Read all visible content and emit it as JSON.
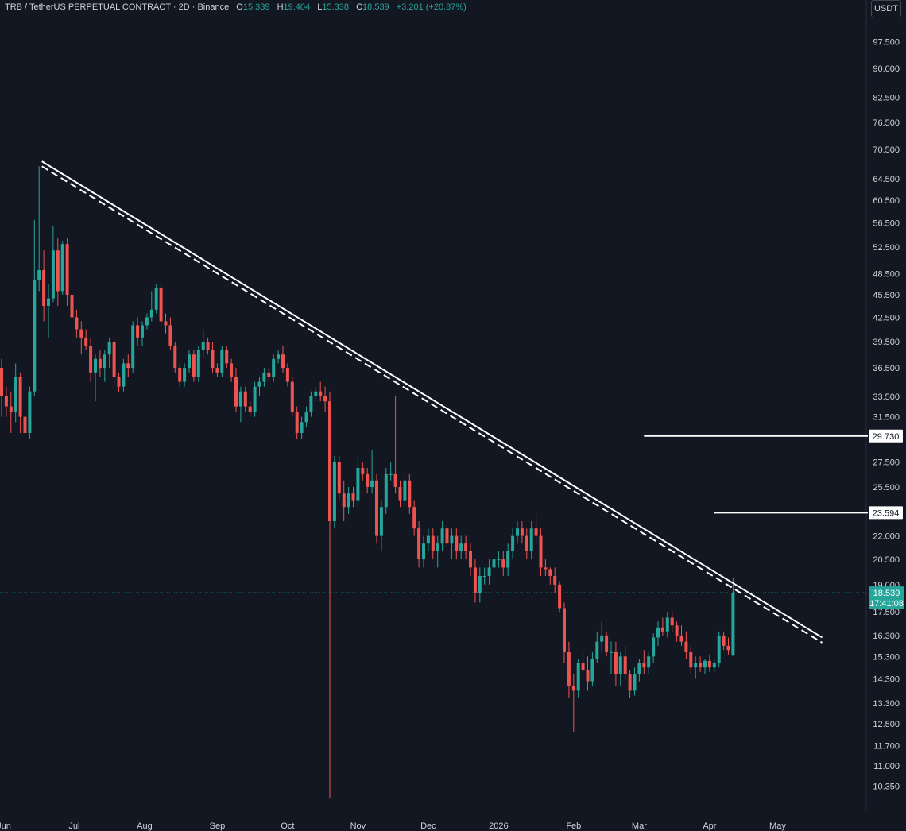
{
  "header": {
    "symbol": "TRB / TetherUS PERPETUAL CONTRACT · 2D · Binance",
    "o_label": "O",
    "o": "15.339",
    "h_label": "H",
    "h": "19.404",
    "l_label": "L",
    "l": "15.338",
    "c_label": "C",
    "c": "18.539",
    "change": "+3.201 (+20.87%)"
  },
  "unit_label": "USDT",
  "colors": {
    "up": "#26a69a",
    "down": "#ef5350",
    "background": "#131722",
    "text": "#d1d4dc",
    "line": "#ffffff"
  },
  "chart_data": {
    "type": "candlestick",
    "y_scale": "log",
    "ylim": [
      10.0,
      100.0
    ],
    "y_ticks": [
      "97.500",
      "90.000",
      "82.500",
      "76.500",
      "70.500",
      "64.500",
      "60.500",
      "56.500",
      "52.500",
      "48.500",
      "45.500",
      "42.500",
      "39.500",
      "36.500",
      "33.500",
      "31.500",
      "27.500",
      "25.500",
      "22.000",
      "20.500",
      "19.000",
      "17.500",
      "16.300",
      "15.300",
      "14.300",
      "13.300",
      "12.500",
      "11.700",
      "11.000",
      "10.350"
    ],
    "x_ticks": [
      "Jun",
      "Jul",
      "Aug",
      "Sep",
      "Oct",
      "Nov",
      "Dec",
      "2026",
      "Feb",
      "Mar",
      "Apr",
      "May"
    ],
    "x_tick_positions": [
      0.5,
      15.5,
      30.5,
      46,
      61,
      76,
      91,
      106,
      122,
      136,
      151,
      165.5
    ],
    "candles": [
      [
        36.5,
        37.5,
        31.5,
        33.5
      ],
      [
        33.5,
        34.5,
        31.5,
        32.5
      ],
      [
        32.5,
        34.0,
        30.0,
        32.0
      ],
      [
        32.0,
        37.0,
        31.0,
        35.5
      ],
      [
        35.5,
        36.0,
        30.0,
        31.5
      ],
      [
        31.5,
        32.0,
        29.5,
        30.0
      ],
      [
        30.0,
        34.5,
        29.5,
        34.0
      ],
      [
        34.0,
        57.0,
        33.5,
        47.5
      ],
      [
        47.5,
        67.0,
        46.0,
        49.0
      ],
      [
        49.0,
        52.0,
        42.0,
        44.0
      ],
      [
        44.0,
        47.0,
        40.0,
        45.0
      ],
      [
        45.0,
        56.0,
        44.5,
        52.0
      ],
      [
        52.0,
        54.0,
        44.0,
        46.0
      ],
      [
        46.0,
        53.5,
        45.5,
        53.0
      ],
      [
        53.0,
        54.0,
        44.0,
        45.5
      ],
      [
        45.5,
        46.5,
        41.0,
        42.5
      ],
      [
        42.5,
        43.5,
        40.0,
        41.0
      ],
      [
        41.0,
        42.0,
        38.0,
        40.0
      ],
      [
        40.0,
        41.0,
        38.5,
        39.0
      ],
      [
        39.0,
        40.0,
        35.0,
        36.0
      ],
      [
        36.0,
        38.0,
        33.0,
        37.5
      ],
      [
        37.5,
        38.5,
        35.5,
        36.5
      ],
      [
        36.5,
        38.5,
        35.0,
        38.0
      ],
      [
        38.0,
        40.0,
        36.5,
        39.5
      ],
      [
        39.5,
        40.0,
        34.5,
        35.5
      ],
      [
        35.5,
        36.0,
        34.0,
        34.5
      ],
      [
        34.5,
        37.5,
        34.0,
        37.0
      ],
      [
        37.0,
        38.0,
        35.5,
        36.5
      ],
      [
        36.5,
        42.0,
        36.0,
        41.5
      ],
      [
        41.5,
        42.5,
        39.0,
        40.0
      ],
      [
        40.0,
        42.0,
        39.0,
        41.5
      ],
      [
        41.5,
        43.0,
        41.0,
        42.5
      ],
      [
        42.5,
        46.0,
        42.0,
        43.5
      ],
      [
        43.5,
        47.0,
        43.0,
        46.5
      ],
      [
        46.5,
        47.0,
        41.5,
        42.0
      ],
      [
        42.0,
        43.0,
        40.5,
        41.5
      ],
      [
        41.5,
        42.5,
        38.5,
        39.0
      ],
      [
        39.0,
        39.5,
        36.0,
        36.5
      ],
      [
        36.5,
        37.0,
        34.5,
        35.0
      ],
      [
        35.0,
        37.0,
        34.5,
        36.5
      ],
      [
        36.5,
        38.5,
        36.0,
        38.0
      ],
      [
        38.0,
        38.5,
        35.0,
        35.5
      ],
      [
        35.5,
        39.0,
        35.0,
        38.5
      ],
      [
        38.5,
        41.0,
        37.5,
        39.5
      ],
      [
        39.5,
        40.0,
        38.0,
        38.5
      ],
      [
        38.5,
        39.5,
        36.0,
        36.5
      ],
      [
        36.5,
        37.0,
        35.5,
        36.0
      ],
      [
        36.0,
        39.0,
        35.5,
        38.5
      ],
      [
        38.5,
        39.0,
        36.5,
        37.0
      ],
      [
        37.0,
        37.5,
        35.0,
        35.5
      ],
      [
        35.5,
        36.5,
        32.0,
        32.5
      ],
      [
        32.5,
        34.5,
        31.0,
        34.0
      ],
      [
        34.0,
        34.5,
        32.0,
        32.5
      ],
      [
        32.5,
        33.0,
        31.5,
        32.0
      ],
      [
        32.0,
        35.0,
        31.5,
        34.5
      ],
      [
        34.5,
        35.5,
        33.5,
        35.0
      ],
      [
        35.0,
        36.5,
        34.5,
        36.0
      ],
      [
        36.0,
        36.5,
        35.0,
        35.5
      ],
      [
        35.5,
        38.0,
        35.0,
        37.5
      ],
      [
        37.5,
        38.5,
        37.0,
        38.0
      ],
      [
        38.0,
        39.0,
        36.0,
        36.5
      ],
      [
        36.5,
        37.0,
        34.5,
        35.0
      ],
      [
        35.0,
        35.5,
        31.5,
        32.0
      ],
      [
        32.0,
        32.5,
        29.5,
        30.0
      ],
      [
        30.0,
        31.5,
        29.5,
        31.0
      ],
      [
        31.0,
        32.5,
        30.5,
        32.0
      ],
      [
        32.0,
        34.0,
        31.5,
        33.5
      ],
      [
        33.5,
        34.5,
        33.0,
        34.0
      ],
      [
        34.0,
        35.0,
        33.0,
        33.5
      ],
      [
        33.5,
        34.5,
        32.0,
        33.0
      ],
      [
        33.0,
        34.0,
        10.0,
        23.0
      ],
      [
        23.0,
        28.0,
        22.5,
        27.5
      ],
      [
        27.5,
        28.0,
        24.5,
        25.0
      ],
      [
        25.0,
        26.0,
        23.0,
        24.0
      ],
      [
        24.0,
        25.5,
        23.5,
        25.0
      ],
      [
        25.0,
        25.5,
        24.0,
        24.5
      ],
      [
        24.5,
        28.0,
        24.0,
        27.0
      ],
      [
        27.0,
        27.5,
        26.0,
        26.5
      ],
      [
        26.5,
        27.0,
        25.0,
        25.5
      ],
      [
        25.5,
        28.5,
        25.0,
        26.0
      ],
      [
        26.0,
        26.5,
        21.5,
        22.0
      ],
      [
        22.0,
        24.5,
        21.0,
        24.0
      ],
      [
        24.0,
        27.0,
        23.5,
        26.5
      ],
      [
        26.5,
        27.5,
        26.0,
        26.5
      ],
      [
        26.5,
        33.5,
        25.0,
        25.5
      ],
      [
        25.5,
        26.0,
        24.0,
        24.5
      ],
      [
        24.5,
        26.5,
        24.0,
        26.0
      ],
      [
        26.0,
        26.5,
        23.5,
        24.0
      ],
      [
        24.0,
        24.5,
        22.0,
        22.5
      ],
      [
        22.5,
        23.0,
        20.0,
        20.5
      ],
      [
        20.5,
        22.0,
        20.0,
        21.5
      ],
      [
        21.5,
        22.5,
        21.0,
        22.0
      ],
      [
        22.0,
        22.5,
        20.5,
        21.0
      ],
      [
        21.0,
        22.0,
        20.0,
        21.5
      ],
      [
        21.5,
        23.0,
        21.0,
        22.5
      ],
      [
        22.5,
        23.0,
        21.0,
        21.5
      ],
      [
        21.5,
        22.5,
        20.5,
        22.0
      ],
      [
        22.0,
        22.5,
        20.5,
        21.0
      ],
      [
        21.0,
        22.0,
        20.5,
        21.5
      ],
      [
        21.5,
        22.0,
        20.5,
        21.0
      ],
      [
        21.0,
        21.5,
        19.5,
        20.0
      ],
      [
        20.0,
        20.5,
        18.0,
        18.5
      ],
      [
        18.5,
        20.0,
        18.0,
        19.5
      ],
      [
        19.5,
        20.0,
        19.0,
        19.5
      ],
      [
        19.5,
        20.5,
        19.0,
        20.0
      ],
      [
        20.0,
        21.0,
        19.5,
        20.5
      ],
      [
        20.5,
        21.0,
        20.0,
        20.5
      ],
      [
        20.5,
        21.0,
        19.5,
        20.0
      ],
      [
        20.0,
        21.5,
        19.5,
        21.0
      ],
      [
        21.0,
        22.5,
        20.5,
        22.0
      ],
      [
        22.0,
        23.0,
        21.5,
        22.5
      ],
      [
        22.5,
        23.0,
        21.5,
        22.0
      ],
      [
        22.0,
        22.5,
        20.5,
        21.0
      ],
      [
        21.0,
        23.0,
        20.5,
        22.5
      ],
      [
        22.5,
        23.5,
        21.5,
        22.0
      ],
      [
        22.0,
        22.5,
        19.5,
        20.0
      ],
      [
        20.0,
        20.5,
        19.5,
        19.9
      ],
      [
        19.9,
        20.0,
        19.0,
        19.5
      ],
      [
        19.5,
        20.0,
        18.5,
        19.0
      ],
      [
        19.0,
        19.2,
        17.5,
        17.7
      ],
      [
        17.7,
        18.0,
        15.0,
        15.5
      ],
      [
        15.5,
        16.0,
        13.5,
        14.0
      ],
      [
        14.0,
        14.5,
        12.2,
        13.8
      ],
      [
        13.8,
        15.2,
        13.5,
        15.0
      ],
      [
        15.0,
        15.5,
        14.5,
        14.7
      ],
      [
        14.7,
        15.3,
        13.8,
        14.2
      ],
      [
        14.2,
        15.5,
        14.0,
        15.2
      ],
      [
        15.2,
        16.5,
        15.0,
        16.0
      ],
      [
        16.0,
        17.0,
        15.5,
        16.3
      ],
      [
        16.3,
        16.5,
        15.3,
        15.5
      ],
      [
        15.5,
        16.0,
        14.5,
        15.5
      ],
      [
        15.5,
        16.0,
        14.0,
        14.5
      ],
      [
        14.5,
        15.5,
        14.0,
        15.3
      ],
      [
        15.3,
        15.8,
        14.3,
        14.5
      ],
      [
        14.5,
        14.7,
        13.5,
        13.8
      ],
      [
        13.8,
        14.8,
        13.6,
        14.5
      ],
      [
        14.5,
        15.2,
        14.2,
        15.0
      ],
      [
        15.0,
        15.6,
        14.5,
        14.8
      ],
      [
        14.8,
        15.5,
        14.5,
        15.3
      ],
      [
        15.3,
        16.4,
        15.0,
        16.2
      ],
      [
        16.2,
        17.0,
        15.8,
        16.7
      ],
      [
        16.7,
        17.2,
        16.3,
        16.5
      ],
      [
        16.5,
        17.5,
        16.2,
        17.2
      ],
      [
        17.2,
        17.5,
        16.5,
        16.8
      ],
      [
        16.8,
        17.0,
        16.0,
        16.3
      ],
      [
        16.3,
        16.8,
        15.8,
        16.0
      ],
      [
        16.0,
        16.5,
        15.2,
        15.5
      ],
      [
        15.5,
        15.8,
        14.5,
        14.8
      ],
      [
        14.8,
        15.3,
        14.3,
        15.0
      ],
      [
        15.0,
        15.3,
        14.6,
        14.8
      ],
      [
        14.8,
        15.2,
        14.5,
        15.1
      ],
      [
        15.1,
        15.4,
        14.6,
        14.8
      ],
      [
        14.8,
        15.2,
        14.6,
        15.0
      ],
      [
        15.0,
        16.5,
        14.8,
        16.3
      ],
      [
        16.3,
        16.5,
        15.6,
        15.8
      ],
      [
        15.8,
        16.2,
        15.4,
        15.6
      ],
      [
        15.339,
        19.404,
        15.338,
        18.539
      ]
    ],
    "current_price": "18.539",
    "countdown": "17:41:08",
    "horizontal_levels": [
      "29.730",
      "23.594"
    ],
    "annotations": [
      {
        "type": "trendline",
        "style": "solid",
        "from": [
          8.6,
          68.0
        ],
        "to": [
          175.0,
          16.2
        ]
      },
      {
        "type": "trendline",
        "style": "dashed",
        "from": [
          8.6,
          67.0
        ],
        "to": [
          175.0,
          15.95
        ]
      },
      {
        "type": "horizontal-line",
        "from_x": 137,
        "price": 29.73
      },
      {
        "type": "horizontal-line",
        "from_x": 152,
        "price": 23.594
      }
    ]
  }
}
